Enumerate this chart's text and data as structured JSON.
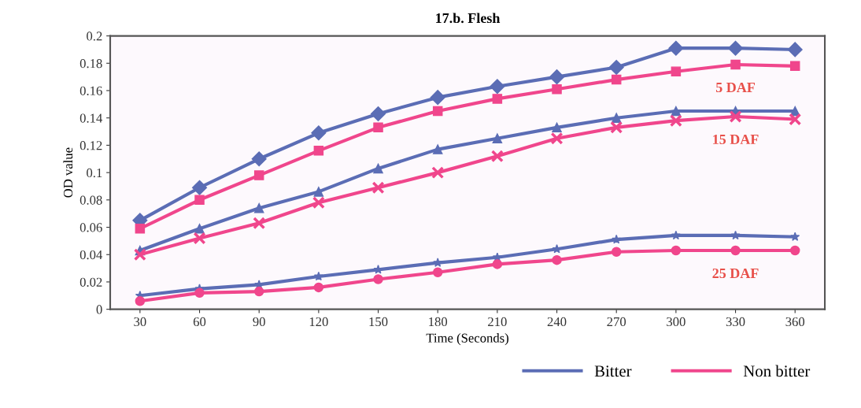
{
  "chart_data": {
    "type": "line",
    "title": "17.b. Flesh",
    "xlabel": "Time (Seconds)",
    "ylabel": "OD value",
    "categories": [
      "30",
      "60",
      "90",
      "120",
      "150",
      "180",
      "210",
      "240",
      "270",
      "300",
      "330",
      "360"
    ],
    "series": [
      {
        "name": "Bitter",
        "color": "#5b6db5",
        "marker": "diamond",
        "values": [
          0.065,
          0.089,
          0.11,
          0.129,
          0.143,
          0.155,
          0.163,
          0.17,
          0.177,
          0.191,
          0.191,
          0.19
        ]
      },
      {
        "name": "Non bitter",
        "color": "#f0468c",
        "marker": "square",
        "values": [
          0.059,
          0.08,
          0.098,
          0.116,
          0.133,
          0.145,
          0.154,
          0.161,
          0.168,
          0.174,
          0.179,
          0.178
        ]
      },
      {
        "color": "#5b6db5",
        "marker": "triangle",
        "values": [
          0.043,
          0.059,
          0.074,
          0.086,
          0.103,
          0.117,
          0.125,
          0.133,
          0.14,
          0.145,
          0.145,
          0.145
        ]
      },
      {
        "color": "#f0468c",
        "marker": "cross",
        "values": [
          0.04,
          0.052,
          0.063,
          0.078,
          0.089,
          0.1,
          0.112,
          0.125,
          0.133,
          0.138,
          0.141,
          0.139
        ]
      },
      {
        "color": "#5b6db5",
        "marker": "star",
        "values": [
          0.01,
          0.015,
          0.018,
          0.024,
          0.029,
          0.034,
          0.038,
          0.044,
          0.051,
          0.054,
          0.054,
          0.053
        ]
      },
      {
        "color": "#f0468c",
        "marker": "circle",
        "values": [
          0.006,
          0.012,
          0.013,
          0.016,
          0.022,
          0.027,
          0.033,
          0.036,
          0.042,
          0.043,
          0.043,
          0.043
        ]
      }
    ],
    "annotations": [
      "5 DAF",
      "15 DAF",
      "25 DAF"
    ],
    "ylim": [
      0,
      0.2
    ],
    "yticks": [
      0,
      0.02,
      0.04,
      0.06,
      0.08,
      0.1,
      0.12,
      0.14,
      0.16,
      0.18,
      0.2
    ],
    "legend": "bottom right",
    "grid": false
  }
}
